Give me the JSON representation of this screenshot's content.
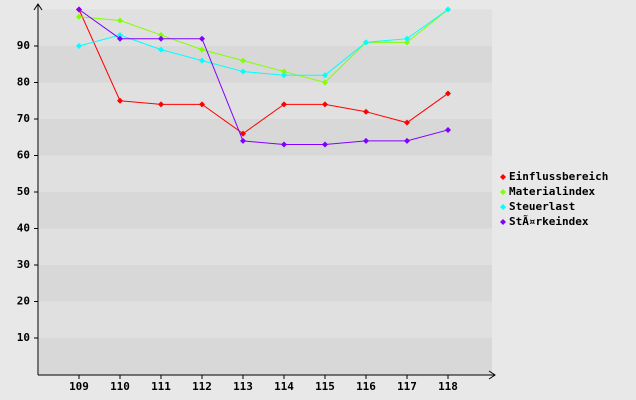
{
  "chart_data": {
    "type": "line",
    "categories": [
      "109",
      "110",
      "111",
      "112",
      "113",
      "114",
      "115",
      "116",
      "117",
      "118"
    ],
    "series": [
      {
        "name": "Einflussbereich",
        "color": "#ff0000",
        "values": [
          100,
          75,
          74,
          74,
          66,
          74,
          74,
          72,
          69,
          77
        ]
      },
      {
        "name": "Materialindex",
        "color": "#80ff00",
        "values": [
          98,
          97,
          93,
          89,
          86,
          83,
          80,
          91,
          91,
          100
        ]
      },
      {
        "name": "Steuerlast",
        "color": "#00ffff",
        "values": [
          90,
          93,
          89,
          86,
          83,
          82,
          82,
          91,
          92,
          100
        ]
      },
      {
        "name": "StÃ¤rkeindex",
        "color": "#8000ff",
        "values": [
          100,
          92,
          92,
          92,
          64,
          63,
          63,
          64,
          64,
          67
        ]
      }
    ],
    "ylim": [
      0,
      100
    ],
    "yticks": [
      10,
      20,
      30,
      40,
      50,
      60,
      70,
      80,
      90
    ],
    "grid": true
  }
}
